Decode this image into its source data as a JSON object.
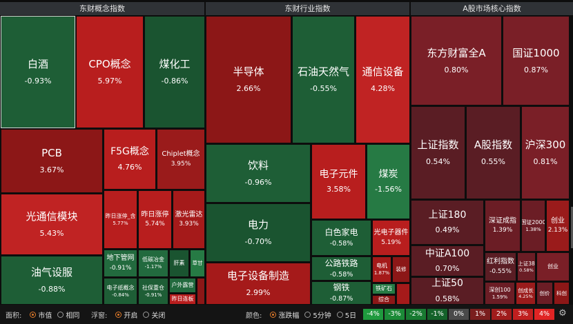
{
  "headers": [
    "东财概念指数",
    "东财行业指数",
    "A股市场核心指数"
  ],
  "tiles": [
    {
      "n": "白酒",
      "v": "-0.93%"
    },
    {
      "n": "CPO概念",
      "v": "5.97%"
    },
    {
      "n": "煤化工",
      "v": "-0.86%"
    },
    {
      "n": "PCB",
      "v": "3.67%"
    },
    {
      "n": "F5G概念",
      "v": "4.76%"
    },
    {
      "n": "Chiplet概念",
      "v": "3.95%"
    },
    {
      "n": "光通信模块",
      "v": "5.43%"
    },
    {
      "n": "昨日涨停_含",
      "v": "5.77%"
    },
    {
      "n": "昨日涨停",
      "v": "5.74%"
    },
    {
      "n": "激光雷达",
      "v": "3.93%"
    },
    {
      "n": "油气设服",
      "v": "-0.88%"
    },
    {
      "n": "地下管网",
      "v": "-0.91%"
    },
    {
      "n": "低碳冶金",
      "v": "-1.17%"
    },
    {
      "n": "肝素",
      "v": ""
    },
    {
      "n": "草甘",
      "v": ""
    },
    {
      "n": "电子纸概念",
      "v": "-0.84%"
    },
    {
      "n": "社保重仓",
      "v": "-0.91%"
    },
    {
      "n": "户外露营",
      "v": ""
    },
    {
      "n": "昨日连板",
      "v": ""
    },
    {
      "n": "半导体",
      "v": "2.66%"
    },
    {
      "n": "石油天然气",
      "v": "-0.55%"
    },
    {
      "n": "通信设备",
      "v": "4.28%"
    },
    {
      "n": "饮料",
      "v": "-0.96%"
    },
    {
      "n": "电子元件",
      "v": "3.58%"
    },
    {
      "n": "煤炭",
      "v": "-1.56%"
    },
    {
      "n": "电力",
      "v": "-0.70%"
    },
    {
      "n": "白色家电",
      "v": "-0.58%"
    },
    {
      "n": "光电子器件",
      "v": "5.19%"
    },
    {
      "n": "公路铁路",
      "v": "-0.58%"
    },
    {
      "n": "电机",
      "v": "1.87%"
    },
    {
      "n": "装修",
      "v": ""
    },
    {
      "n": "电子设备制造",
      "v": "2.99%"
    },
    {
      "n": "钢铁",
      "v": "-0.87%"
    },
    {
      "n": "铁矿石",
      "v": ""
    },
    {
      "n": "综合",
      "v": ""
    },
    {
      "n": "东方财富全A",
      "v": "0.80%"
    },
    {
      "n": "国证1000",
      "v": "0.87%"
    },
    {
      "n": "上证指数",
      "v": "0.54%"
    },
    {
      "n": "A股指数",
      "v": "0.55%"
    },
    {
      "n": "沪深300",
      "v": "0.81%"
    },
    {
      "n": "上证180",
      "v": "0.49%"
    },
    {
      "n": "深证成指",
      "v": "1.39%"
    },
    {
      "n": "国证2000",
      "v": "1.38%"
    },
    {
      "n": "创业",
      "v": "2.13%"
    },
    {
      "n": "中证A100",
      "v": "0.70%"
    },
    {
      "n": "红利指数",
      "v": "-0.55%"
    },
    {
      "n": "上证38",
      "v": "0.58%"
    },
    {
      "n": "创业",
      "v": ""
    },
    {
      "n": "上证50",
      "v": "0.58%"
    },
    {
      "n": "深创100",
      "v": "1.59%"
    },
    {
      "n": "创成长",
      "v": "4.25%"
    },
    {
      "n": "创价",
      "v": ""
    },
    {
      "n": "科创",
      "v": ""
    }
  ],
  "bottom": {
    "area_label": "面积:",
    "area_opt1": "市值",
    "area_opt2": "相同",
    "float_label": "浮窗:",
    "float_opt1": "开启",
    "float_opt2": "关闭",
    "color_label": "颜色:",
    "color_opt1": "涨跌幅",
    "color_opt2": "5分钟",
    "color_opt3": "5日"
  },
  "legend": [
    {
      "t": "-4%",
      "c": "#1f9a3e"
    },
    {
      "t": "-3%",
      "c": "#1b8a37"
    },
    {
      "t": "-2%",
      "c": "#187a31"
    },
    {
      "t": "-1%",
      "c": "#14622a"
    },
    {
      "t": "0%",
      "c": "#4a4a4a"
    },
    {
      "t": "1%",
      "c": "#7a1e1e"
    },
    {
      "t": "2%",
      "c": "#a01c1c"
    },
    {
      "t": "3%",
      "c": "#c01f1f"
    },
    {
      "t": "4%",
      "c": "#e02424"
    }
  ],
  "icons": {
    "settings": "gear-icon"
  }
}
